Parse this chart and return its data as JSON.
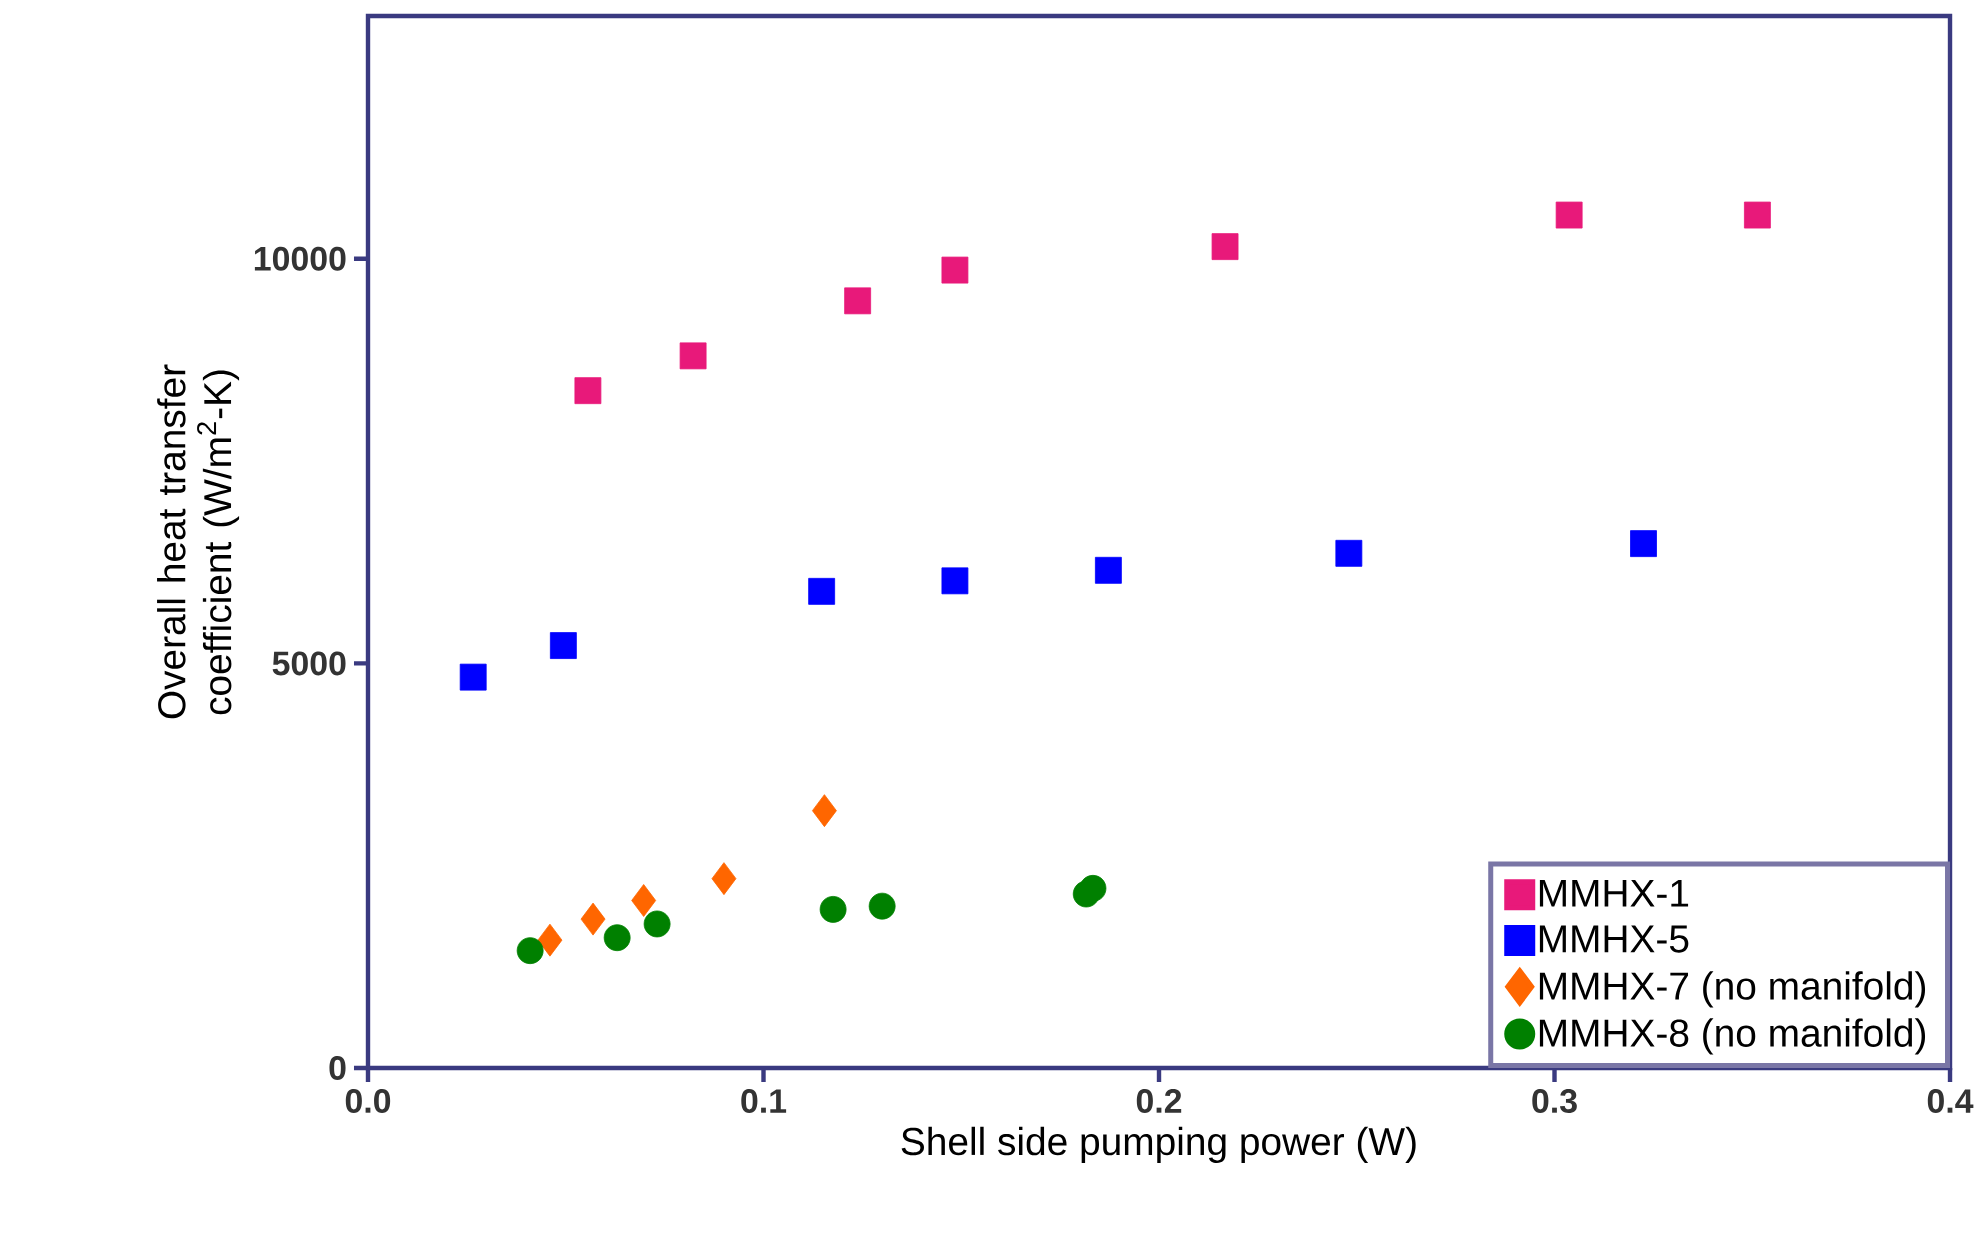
{
  "chart_data": {
    "type": "scatter",
    "xlabel": "Shell side pumping power (W)",
    "ylabel": "Overall heat transfer coefficient (W/m$^{2}$-K)",
    "xlim": [
      0,
      0.4
    ],
    "xticks": [
      {
        "value": 0,
        "label": "0.0"
      },
      0.1,
      0.2,
      0.3,
      0.4
    ],
    "ylim": [
      0,
      13000
    ],
    "yticks": [
      0,
      5000,
      10000
    ],
    "grid": false,
    "legend": "bottom right",
    "series": [
      {
        "name": "MMHX-1",
        "color": "#e8197a",
        "marker": "square",
        "x": [
          0.0556,
          0.0822,
          0.1238,
          0.1484,
          0.2167,
          0.3037,
          0.3513
        ],
        "values": [
          8370,
          8800,
          9480,
          9860,
          10150,
          10540,
          10540
        ]
      },
      {
        "name": "MMHX-5",
        "color": "#0000ff",
        "marker": "square",
        "x": [
          0.0266,
          0.0494,
          0.1147,
          0.1484,
          0.1872,
          0.248,
          0.3225
        ],
        "values": [
          4830,
          5220,
          5890,
          6020,
          6150,
          6360,
          6480
        ]
      },
      {
        "name": "MMHX-7 (no manifold)",
        "color": "#ff6600",
        "marker": "diamond",
        "x": [
          0.046,
          0.0569,
          0.0697,
          0.09,
          0.1154
        ],
        "values": [
          1580,
          1840,
          2070,
          2340,
          3180
        ]
      },
      {
        "name": "MMHX-8 (no manifold)",
        "color": "#008000",
        "marker": "circle",
        "x": [
          0.041,
          0.063,
          0.0731,
          0.1176,
          0.13,
          0.1816,
          0.1833
        ],
        "values": [
          1450,
          1610,
          1780,
          1960,
          2000,
          2150,
          2220
        ]
      }
    ]
  }
}
